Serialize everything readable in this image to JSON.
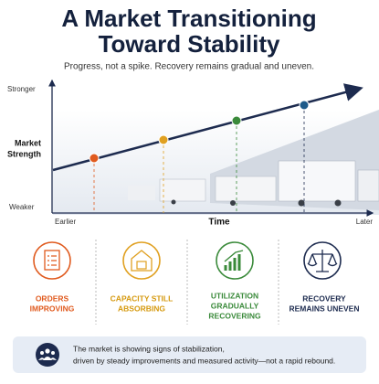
{
  "header": {
    "title_lines": [
      "A Market Transitioning",
      "Toward Stability"
    ],
    "subtitle": "Progress, not a spike. Recovery remains gradual and uneven."
  },
  "chart": {
    "y_axis_title_lines": [
      "Market",
      "Strength"
    ],
    "y_top": "Stronger",
    "y_bottom": "Weaker",
    "x_axis_title": "Time",
    "x_left": "Earlier",
    "x_right": "Later"
  },
  "indicators": [
    {
      "label_lines": [
        "ORDERS",
        "IMPROVING"
      ]
    },
    {
      "label_lines": [
        "CAPACITY STILL",
        "ABSORBING"
      ]
    },
    {
      "label_lines": [
        "UTILIZATION",
        "GRADUALLY",
        "RECOVERING"
      ]
    },
    {
      "label_lines": [
        "RECOVERY",
        "REMAINS UNEVEN"
      ]
    }
  ],
  "footer": {
    "lines": [
      "The market is showing signs of stabilization,",
      "driven by steady improvements and measured activity—not a rapid rebound."
    ]
  }
}
